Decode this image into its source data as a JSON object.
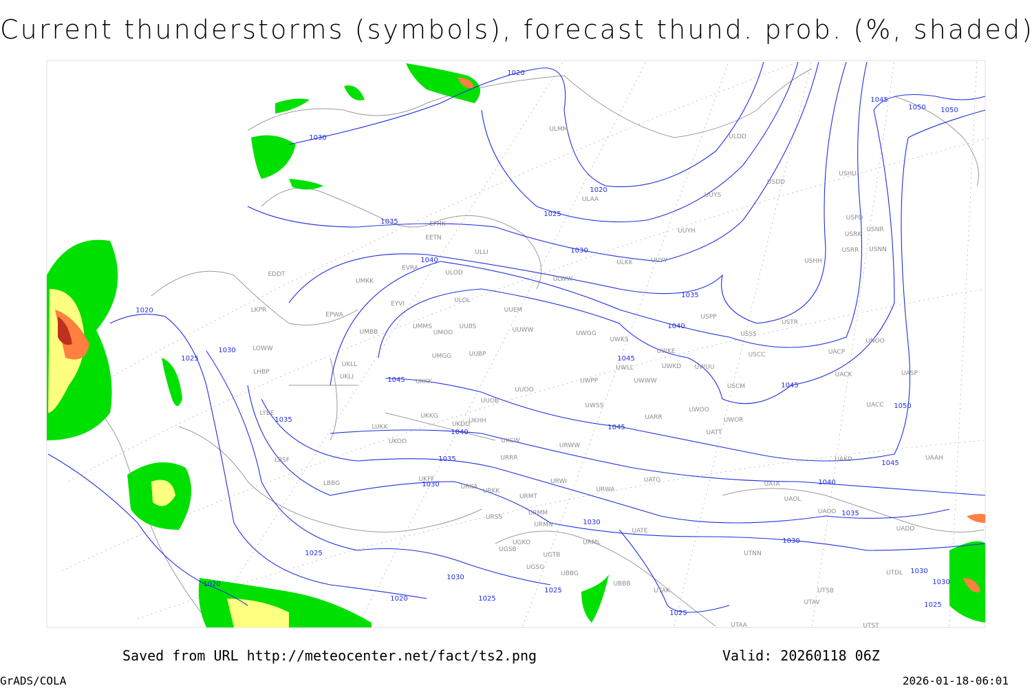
{
  "title": "Current thunderstorms (symbols), forecast thund. prob. (%, shaded)",
  "footer": {
    "saved": "Saved from URL http://meteocenter.net/fact/ts2.png",
    "valid": "Valid: 20260118 06Z",
    "credit": "GrADS/COLA",
    "timestamp": "2026-01-18-06:01"
  },
  "isobar_labels": [
    "1020",
    "1030",
    "1045",
    "1050",
    "1050",
    "1020",
    "1025",
    "1035",
    "1030",
    "1040",
    "1035",
    "1040",
    "1020",
    "1030",
    "1025",
    "1045",
    "1045",
    "1045",
    "1050",
    "1035",
    "1045",
    "1040",
    "1035",
    "1045",
    "1030",
    "1040",
    "1035",
    "1030",
    "1030",
    "1025",
    "1020",
    "1030",
    "1030",
    "1030",
    "1025",
    "1025",
    "1020",
    "1025",
    "1025"
  ],
  "stations": [
    "ULMM",
    "ULDD",
    "USDD",
    "USHU",
    "ULAA",
    "UUYS",
    "USPD",
    "USNR",
    "USRK",
    "UUYH",
    "USRR",
    "USNN",
    "EFHK",
    "EETN",
    "ULLI",
    "ULKK",
    "UUYY",
    "USHH",
    "EVRA",
    "ULOD",
    "EDDT",
    "UMKK",
    "ULWW",
    "EYVI",
    "ULOL",
    "UUEM",
    "LKPR",
    "EPWA",
    "USPP",
    "USTR",
    "UMMS",
    "UUBS",
    "UMOO",
    "UMBB",
    "UUWW",
    "UWGG",
    "UWKS",
    "USSS",
    "UNOO",
    "LOWW",
    "UMGG",
    "UUBP",
    "UWKE",
    "UACP",
    "USCC",
    "UKLL",
    "UWLL",
    "UWKD",
    "UWUU",
    "UACK",
    "LHBP",
    "UKLI",
    "UKKK",
    "UWPP",
    "UWWW",
    "UASP",
    "USCM",
    "UUOO",
    "UUOB",
    "UWSS",
    "UACC",
    "UWOO",
    "LYBE",
    "UWOR",
    "UARR",
    "UKKG",
    "UKDD",
    "UKHH",
    "LUKK",
    "UATT",
    "UKOO",
    "UKCW",
    "URWW",
    "UAKD",
    "UAAH",
    "LBSF",
    "URRR",
    "UKFF",
    "UATG",
    "URWI",
    "UATA",
    "LBBG",
    "URKA",
    "URKK",
    "URWA",
    "URMT",
    "UAOL",
    "UAOO",
    "URSS",
    "URMM",
    "UATE",
    "URMN",
    "UADD",
    "UGKO",
    "URML",
    "UGSB",
    "UGTB",
    "UTNN",
    "UTDL",
    "UGSG",
    "UBBG",
    "UBBB",
    "UTAK",
    "UTSB",
    "UTAV",
    "UTST",
    "UTAA"
  ]
}
